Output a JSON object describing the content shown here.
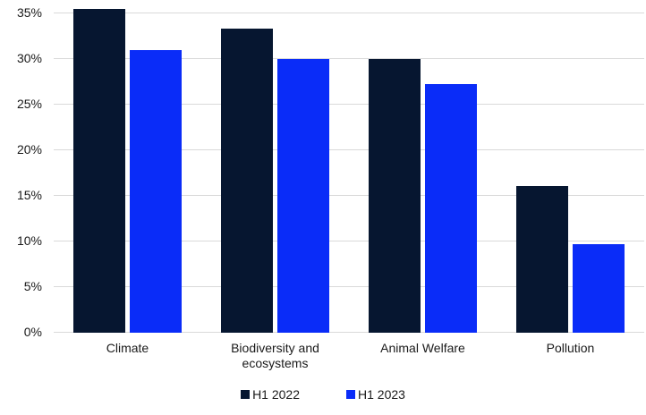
{
  "chart_data": {
    "type": "bar",
    "title": "",
    "xlabel": "",
    "ylabel": "",
    "categories": [
      "Climate",
      "Biodiversity and ecosystems",
      "Animal Welfare",
      "Pollution"
    ],
    "series": [
      {
        "name": "H1 2022",
        "color": "#061630",
        "values": [
          35.5,
          33.3,
          30,
          16.1
        ]
      },
      {
        "name": "H1 2023",
        "color": "#0a2cf8",
        "values": [
          31,
          30,
          27.3,
          9.7
        ]
      }
    ],
    "ylim": [
      0,
      35
    ],
    "ytick_step": 5,
    "ytick_labels": [
      "0%",
      "5%",
      "10%",
      "15%",
      "20%",
      "25%",
      "30%",
      "35%"
    ],
    "grid": "horizontal",
    "gridline_color": "#d9d9d9",
    "text_color": "#1a1a1a",
    "background": "#ffffff",
    "legend_position": "bottom"
  }
}
